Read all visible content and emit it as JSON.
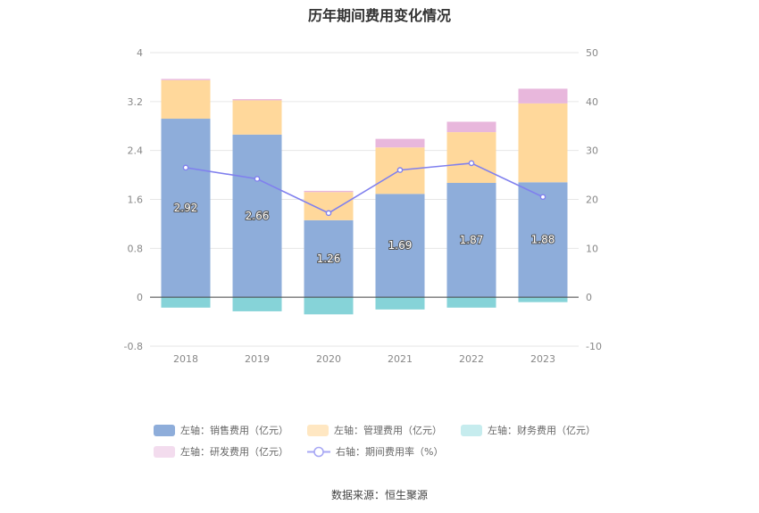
{
  "title": "历年期间费用变化情况",
  "source": "数据来源：恒生聚源",
  "chart_data": {
    "type": "bar",
    "stacked": true,
    "categories": [
      "2018",
      "2019",
      "2020",
      "2021",
      "2022",
      "2023"
    ],
    "left_axis": {
      "ylim": [
        -0.8,
        4
      ],
      "ticks": [
        "4",
        "3.2",
        "2.4",
        "1.6",
        "0.8",
        "0",
        "-0.8"
      ]
    },
    "right_axis": {
      "ylim": [
        -10,
        50
      ],
      "ticks": [
        "50",
        "40",
        "30",
        "20",
        "10",
        "0",
        "-10"
      ]
    },
    "series": [
      {
        "name": "左轴：销售费用（亿元）",
        "axis": "left",
        "color": "#8eadda",
        "values": [
          2.92,
          2.66,
          1.26,
          1.69,
          1.87,
          1.88
        ],
        "labels": [
          "2.92",
          "2.66",
          "1.26",
          "1.69",
          "1.87",
          "1.88"
        ]
      },
      {
        "name": "左轴：管理费用（亿元）",
        "axis": "left",
        "color": "#ffd89b",
        "values": [
          0.63,
          0.56,
          0.46,
          0.76,
          0.83,
          1.29
        ]
      },
      {
        "name": "左轴：财务费用（亿元）",
        "axis": "left",
        "color": "#86d3d8",
        "values": [
          -0.17,
          -0.23,
          -0.28,
          -0.2,
          -0.17,
          -0.08
        ]
      },
      {
        "name": "左轴：研发费用（亿元）",
        "axis": "left",
        "color": "#e8b7dc",
        "values": [
          0.02,
          0.02,
          0.02,
          0.14,
          0.17,
          0.24
        ]
      },
      {
        "name": "右轴：期间费用率（%）",
        "axis": "right",
        "type": "line",
        "color": "#8080ee",
        "values": [
          26.5,
          24.2,
          17.2,
          26.0,
          27.4,
          20.5
        ]
      }
    ],
    "legend_position": "bottom",
    "grid": true
  }
}
